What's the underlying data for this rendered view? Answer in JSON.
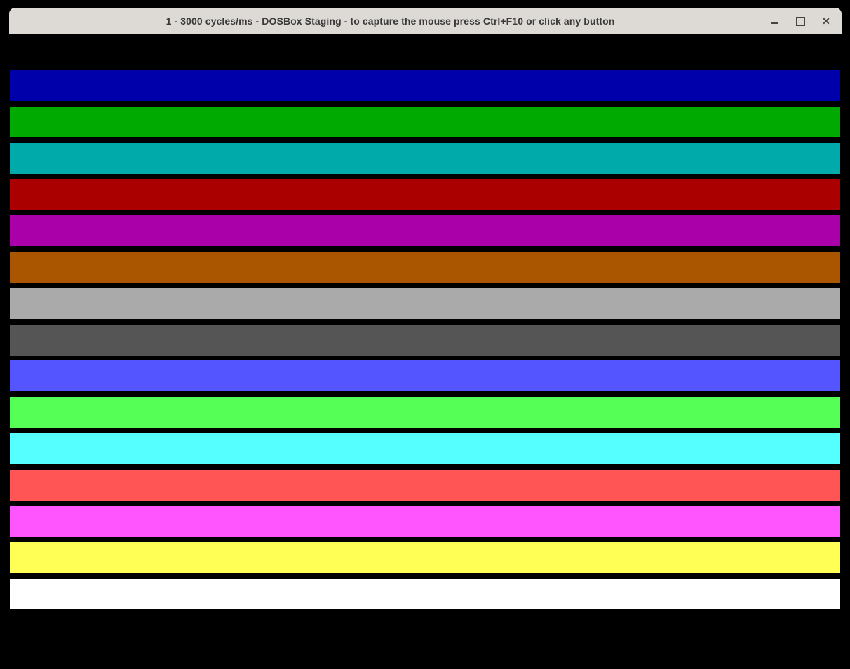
{
  "window": {
    "title": "1 - 3000 cycles/ms - DOSBox Staging - to capture the mouse press Ctrl+F10 or click any button",
    "titlebar_bg": "#dddad5",
    "title_color": "#3a3a3a",
    "controls": {
      "minimize_label": "minimize",
      "maximize_label": "maximize",
      "close_label": "close",
      "close_glyph": "✕"
    }
  },
  "screen": {
    "background": "#000000",
    "bars": [
      {
        "name": "blue",
        "hex": "#0000AA"
      },
      {
        "name": "green",
        "hex": "#00AA00"
      },
      {
        "name": "cyan",
        "hex": "#00AAAA"
      },
      {
        "name": "red",
        "hex": "#AA0000"
      },
      {
        "name": "magenta",
        "hex": "#AA00AA"
      },
      {
        "name": "brown",
        "hex": "#AA5500"
      },
      {
        "name": "light-gray",
        "hex": "#AAAAAA"
      },
      {
        "name": "dark-gray",
        "hex": "#555555"
      },
      {
        "name": "bright-blue",
        "hex": "#5555FF"
      },
      {
        "name": "bright-green",
        "hex": "#55FF55"
      },
      {
        "name": "bright-cyan",
        "hex": "#55FFFF"
      },
      {
        "name": "bright-red",
        "hex": "#FF5555"
      },
      {
        "name": "bright-magenta",
        "hex": "#FF55FF"
      },
      {
        "name": "yellow",
        "hex": "#FFFF55"
      },
      {
        "name": "white",
        "hex": "#FFFFFF"
      }
    ]
  }
}
